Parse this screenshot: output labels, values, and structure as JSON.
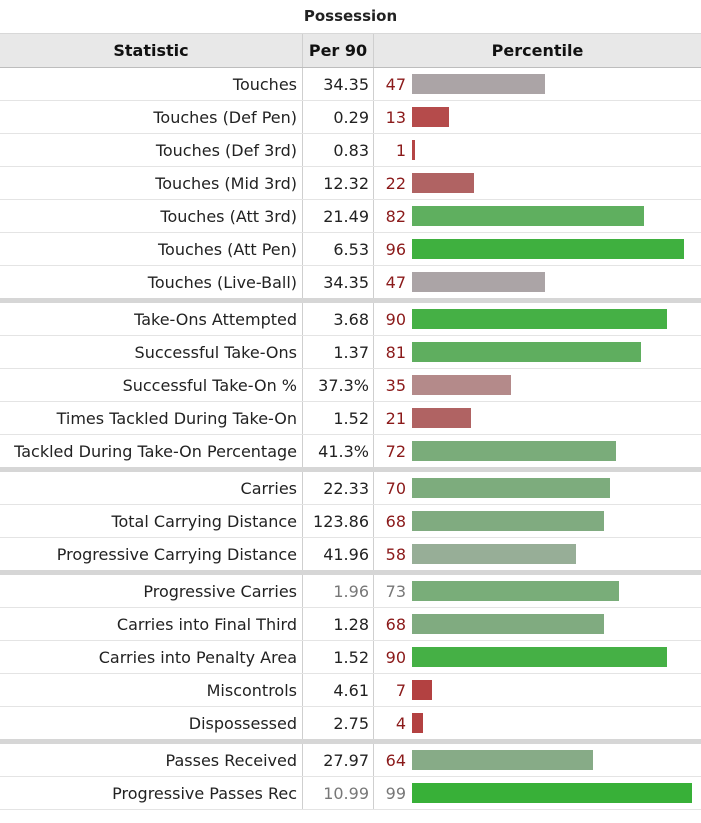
{
  "caption": "Possession",
  "headers": {
    "statistic": "Statistic",
    "per90": "Per 90",
    "percentile": "Percentile"
  },
  "chart_data": {
    "type": "bar",
    "title": "Possession",
    "xlim": [
      0,
      99
    ],
    "rows": [
      {
        "stat": "Touches",
        "per90": "34.35",
        "percentile": 47,
        "color": "#aba4a6",
        "sep": false,
        "muted": false
      },
      {
        "stat": "Touches (Def Pen)",
        "per90": "0.29",
        "percentile": 13,
        "color": "#b54b4b",
        "sep": false,
        "muted": false
      },
      {
        "stat": "Touches (Def 3rd)",
        "per90": "0.83",
        "percentile": 1,
        "color": "#b54545",
        "sep": false,
        "muted": false
      },
      {
        "stat": "Touches (Mid 3rd)",
        "per90": "12.32",
        "percentile": 22,
        "color": "#b06363",
        "sep": false,
        "muted": false
      },
      {
        "stat": "Touches (Att 3rd)",
        "per90": "21.49",
        "percentile": 82,
        "color": "#5faf5f",
        "sep": false,
        "muted": false
      },
      {
        "stat": "Touches (Att Pen)",
        "per90": "6.53",
        "percentile": 96,
        "color": "#3fb03f",
        "sep": false,
        "muted": false
      },
      {
        "stat": "Touches (Live-Ball)",
        "per90": "34.35",
        "percentile": 47,
        "color": "#aba4a6",
        "sep": true,
        "muted": false
      },
      {
        "stat": "Take-Ons Attempted",
        "per90": "3.68",
        "percentile": 90,
        "color": "#45b045",
        "sep": false,
        "muted": false
      },
      {
        "stat": "Successful Take-Ons",
        "per90": "1.37",
        "percentile": 81,
        "color": "#5fae5f",
        "sep": false,
        "muted": false
      },
      {
        "stat": "Successful Take-On %",
        "per90": "37.3%",
        "percentile": 35,
        "color": "#b48a8a",
        "sep": false,
        "muted": false
      },
      {
        "stat": "Times Tackled During Take-On",
        "per90": "1.52",
        "percentile": 21,
        "color": "#b06363",
        "sep": false,
        "muted": false
      },
      {
        "stat": "Tackled During Take-On Percentage",
        "per90": "41.3%",
        "percentile": 72,
        "color": "#7aac7a",
        "sep": true,
        "muted": false
      },
      {
        "stat": "Carries",
        "per90": "22.33",
        "percentile": 70,
        "color": "#7dac7d",
        "sep": false,
        "muted": false
      },
      {
        "stat": "Total Carrying Distance",
        "per90": "123.86",
        "percentile": 68,
        "color": "#80ab80",
        "sep": false,
        "muted": false
      },
      {
        "stat": "Progressive Carrying Distance",
        "per90": "41.96",
        "percentile": 58,
        "color": "#97ae97",
        "sep": true,
        "muted": false
      },
      {
        "stat": "Progressive Carries",
        "per90": "1.96",
        "percentile": 73,
        "color": "#79ad79",
        "sep": false,
        "muted": true
      },
      {
        "stat": "Carries into Final Third",
        "per90": "1.28",
        "percentile": 68,
        "color": "#80ab80",
        "sep": false,
        "muted": false
      },
      {
        "stat": "Carries into Penalty Area",
        "per90": "1.52",
        "percentile": 90,
        "color": "#45b045",
        "sep": false,
        "muted": false
      },
      {
        "stat": "Miscontrols",
        "per90": "4.61",
        "percentile": 7,
        "color": "#b34141",
        "sep": false,
        "muted": false
      },
      {
        "stat": "Dispossessed",
        "per90": "2.75",
        "percentile": 4,
        "color": "#b34141",
        "sep": true,
        "muted": false
      },
      {
        "stat": "Passes Received",
        "per90": "27.97",
        "percentile": 64,
        "color": "#87ab87",
        "sep": false,
        "muted": false
      },
      {
        "stat": "Progressive Passes Rec",
        "per90": "10.99",
        "percentile": 99,
        "color": "#38b038",
        "sep": false,
        "muted": true
      }
    ]
  }
}
